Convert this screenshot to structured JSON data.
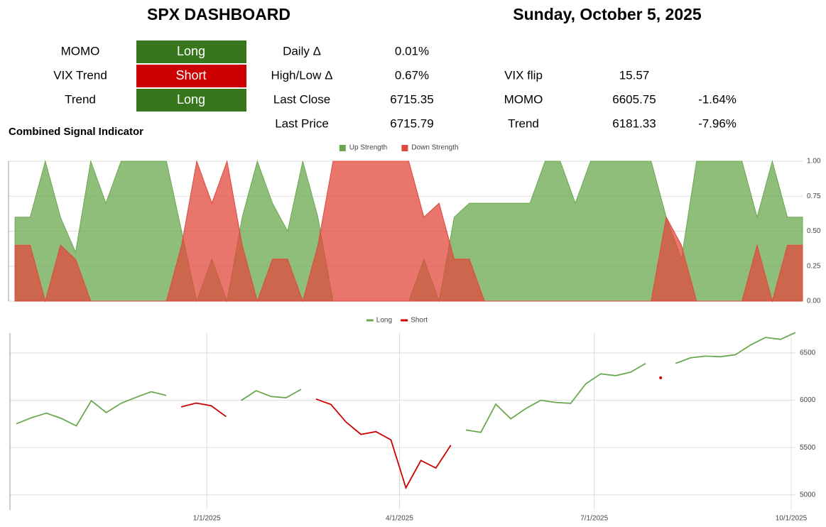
{
  "dashboard": {
    "title": "SPX DASHBOARD",
    "date": "Sunday, October 5, 2025",
    "signal_colors": {
      "Long": "#38761d",
      "Short": "#cc0000"
    },
    "signals": [
      {
        "label": "MOMO",
        "state": "Long"
      },
      {
        "label": "VIX Trend",
        "state": "Short"
      },
      {
        "label": "Trend",
        "state": "Long"
      }
    ],
    "stats": [
      [
        "Daily Δ",
        "0.01%"
      ],
      [
        "High/Low Δ",
        "0.67%"
      ],
      [
        "Last Close",
        "6715.35"
      ],
      [
        "Last Price",
        "6715.79"
      ]
    ],
    "levels": [
      [
        "VIX flip",
        "15.57"
      ],
      [
        "MOMO",
        "6605.75",
        "-1.64%"
      ],
      [
        "Trend",
        "6181.33",
        "-7.96%"
      ]
    ]
  },
  "chart_data": [
    {
      "type": "area",
      "title": "Combined Signal Indicator",
      "x": [
        "2024-10-04",
        "2024-10-11",
        "2024-10-18",
        "2024-10-25",
        "2024-11-01",
        "2024-11-08",
        "2024-11-15",
        "2024-11-22",
        "2024-11-29",
        "2024-12-06",
        "2024-12-13",
        "2024-12-20",
        "2024-12-27",
        "2025-01-03",
        "2025-01-10",
        "2025-01-17",
        "2025-01-24",
        "2025-01-31",
        "2025-02-07",
        "2025-02-14",
        "2025-02-21",
        "2025-02-28",
        "2025-03-07",
        "2025-03-14",
        "2025-03-21",
        "2025-03-28",
        "2025-04-04",
        "2025-04-11",
        "2025-04-18",
        "2025-04-25",
        "2025-05-02",
        "2025-05-09",
        "2025-05-16",
        "2025-05-23",
        "2025-05-30",
        "2025-06-06",
        "2025-06-13",
        "2025-06-20",
        "2025-06-27",
        "2025-07-04",
        "2025-07-11",
        "2025-07-18",
        "2025-07-25",
        "2025-08-01",
        "2025-08-08",
        "2025-08-15",
        "2025-08-22",
        "2025-08-29",
        "2025-09-05",
        "2025-09-12",
        "2025-09-19",
        "2025-09-26",
        "2025-10-03"
      ],
      "xlim": [
        "2024-10-01",
        "2025-10-03"
      ],
      "series": [
        {
          "name": "Up Strength",
          "color": "#6aa84f",
          "values": [
            0.6,
            0.6,
            1,
            0.6,
            0.35,
            1,
            0.7,
            1,
            1,
            1,
            1,
            0.5,
            0,
            0.3,
            0,
            0.6,
            1,
            0.7,
            0.5,
            1,
            0.6,
            0,
            0,
            0,
            0,
            0,
            0,
            0.3,
            0,
            0.6,
            0.7,
            0.7,
            0.7,
            0.7,
            0.7,
            1,
            1,
            0.7,
            1,
            1,
            1,
            1,
            1,
            0.6,
            0.3,
            1,
            1,
            1,
            1,
            0.6,
            1,
            0.6,
            0.6
          ]
        },
        {
          "name": "Down Strength",
          "color": "#e0483c",
          "values": [
            0.4,
            0.4,
            0,
            0.4,
            0.3,
            0,
            0,
            0,
            0,
            0,
            0,
            0.4,
            1,
            0.7,
            1,
            0.4,
            0,
            0.3,
            0.3,
            0,
            0.4,
            1,
            1,
            1,
            1,
            1,
            1,
            0.6,
            0.7,
            0.3,
            0.3,
            0,
            0,
            0,
            0,
            0,
            0,
            0,
            0,
            0,
            0,
            0,
            0,
            0.6,
            0.4,
            0,
            0,
            0,
            0,
            0.4,
            0,
            0.4,
            0.4
          ]
        }
      ],
      "ylim": [
        0,
        1
      ],
      "yticks": [
        {
          "value": 0,
          "label": "0.00"
        },
        {
          "value": 0.25,
          "label": "0.25"
        },
        {
          "value": 0.5,
          "label": "0.50"
        },
        {
          "value": 0.75,
          "label": "0.75"
        },
        {
          "value": 1,
          "label": "1.00"
        }
      ],
      "grid": true,
      "legend": "top"
    },
    {
      "type": "line",
      "x": [
        "2024-10-04",
        "2024-10-11",
        "2024-10-18",
        "2024-10-25",
        "2024-11-01",
        "2024-11-08",
        "2024-11-15",
        "2024-11-22",
        "2024-11-29",
        "2024-12-06",
        "2024-12-13",
        "2024-12-20",
        "2024-12-27",
        "2025-01-03",
        "2025-01-10",
        "2025-01-17",
        "2025-01-24",
        "2025-01-31",
        "2025-02-07",
        "2025-02-14",
        "2025-02-21",
        "2025-02-28",
        "2025-03-07",
        "2025-03-14",
        "2025-03-21",
        "2025-03-28",
        "2025-04-04",
        "2025-04-11",
        "2025-04-18",
        "2025-04-25",
        "2025-05-02",
        "2025-05-09",
        "2025-05-16",
        "2025-05-23",
        "2025-05-30",
        "2025-06-06",
        "2025-06-13",
        "2025-06-20",
        "2025-06-27",
        "2025-07-04",
        "2025-07-11",
        "2025-07-18",
        "2025-07-25",
        "2025-08-01",
        "2025-08-08",
        "2025-08-15",
        "2025-08-22",
        "2025-08-29",
        "2025-09-05",
        "2025-09-12",
        "2025-09-19",
        "2025-09-26",
        "2025-10-03"
      ],
      "xlim": [
        "2024-10-01",
        "2025-10-03"
      ],
      "xticks": [
        {
          "value": "2025-01-01",
          "label": "1/1/2025"
        },
        {
          "value": "2025-04-01",
          "label": "4/1/2025"
        },
        {
          "value": "2025-07-01",
          "label": "7/1/2025"
        },
        {
          "value": "2025-10-01",
          "label": "10/1/2025"
        }
      ],
      "series": [
        {
          "name": "Long",
          "color": "#6aa84f",
          "values": [
            5751,
            5815,
            5864,
            5808,
            5729,
            5995,
            5870,
            5969,
            6032,
            6090,
            6051,
            null,
            null,
            null,
            null,
            5997,
            6101,
            6040,
            6026,
            6115,
            null,
            null,
            null,
            null,
            null,
            null,
            null,
            null,
            null,
            null,
            5686,
            5660,
            5958,
            5803,
            5912,
            6000,
            5977,
            5967,
            6173,
            6279,
            6260,
            6297,
            6389,
            null,
            6389,
            6449,
            6467,
            6460,
            6482,
            6584,
            6664,
            6644,
            6716
          ]
        },
        {
          "name": "Short",
          "color": "#cc0000",
          "values": [
            null,
            null,
            null,
            null,
            null,
            null,
            null,
            null,
            null,
            null,
            null,
            5930,
            5970,
            5942,
            5827,
            null,
            null,
            null,
            null,
            null,
            6013,
            5955,
            5770,
            5639,
            5668,
            5581,
            5074,
            5363,
            5283,
            5525,
            null,
            null,
            null,
            null,
            null,
            null,
            null,
            null,
            null,
            null,
            null,
            null,
            null,
            6238,
            null,
            null,
            null,
            null,
            null,
            null,
            null,
            null,
            null
          ]
        }
      ],
      "ylim": [
        4840,
        6710
      ],
      "yticks": [
        5000,
        5500,
        6000,
        6500
      ],
      "grid": true,
      "legend": "top"
    }
  ]
}
